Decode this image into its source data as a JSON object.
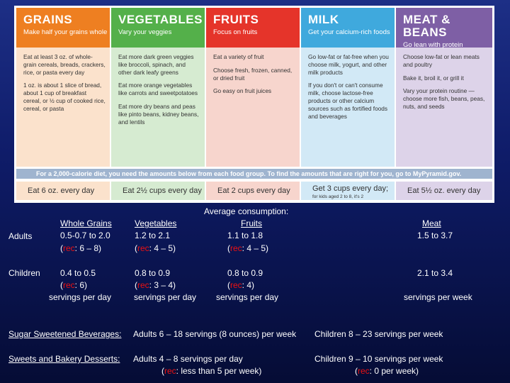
{
  "poster": {
    "columns": [
      {
        "key": "grains",
        "title": "GRAINS",
        "subtitle": "Make half your grains whole",
        "paragraphs": [
          "Eat at least 3 oz. of whole-grain cereals, breads, crackers, rice, or pasta every day",
          "1 oz. is about 1 slice of bread, about 1 cup of breakfast cereal, or ½ cup of cooked rice, cereal, or pasta"
        ],
        "daily": "Eat 6 oz. every day"
      },
      {
        "key": "vegetables",
        "title": "VEGETABLES",
        "subtitle": "Vary your veggies",
        "paragraphs": [
          "Eat more dark green veggies like broccoli, spinach, and other dark leafy greens",
          "Eat more orange vegetables like carrots and sweetpotatoes",
          "Eat more dry beans and peas like pinto beans, kidney beans, and lentils"
        ],
        "daily": "Eat 2½ cups every day"
      },
      {
        "key": "fruits",
        "title": "FRUITS",
        "subtitle": "Focus on fruits",
        "paragraphs": [
          "Eat a variety of fruit",
          "Choose fresh, frozen, canned, or dried fruit",
          "Go easy on fruit juices"
        ],
        "daily": "Eat 2 cups every day"
      },
      {
        "key": "milk",
        "title": "MILK",
        "subtitle": "Get your calcium-rich foods",
        "paragraphs": [
          "Go low-fat or fat-free when you choose milk, yogurt, and other milk products",
          "If you don't or can't consume milk, choose lactose-free products or other calcium sources such as fortified foods and beverages"
        ],
        "daily": "Get 3 cups every day;",
        "daily_note": "for kids aged 2 to 8, it's 2"
      },
      {
        "key": "meat",
        "title": "MEAT & BEANS",
        "subtitle": "Go lean with protein",
        "paragraphs": [
          "Choose low-fat or lean meats and poultry",
          "Bake it, broil it, or grill it",
          "Vary your protein routine — choose more fish, beans, peas, nuts, and seeds"
        ],
        "daily": "Eat 5½ oz. every day"
      }
    ],
    "band": "For a 2,000-calorie diet, you need the amounts below from each food group. To find the amounts that are right for you, go to MyPyramid.gov."
  },
  "colors": {
    "grains": "#ee7f21",
    "grains_light": "#fbe2cc",
    "vegetables": "#54b04a",
    "vegetables_light": "#d6ebd1",
    "fruits": "#e5342a",
    "fruits_light": "#f7d5cd",
    "milk": "#3fa9dd",
    "milk_light": "#d2e9f6",
    "meat": "#7e5fa5",
    "meat_light": "#ddd3e9",
    "rec": "#ee1111"
  },
  "consumption": {
    "title": "Average consumption:",
    "headers": {
      "whole_grains": "Whole Grains",
      "vegetables": "Vegetables",
      "fruits": "Fruits",
      "meat": "Meat"
    },
    "adults": {
      "label": "Adults",
      "whole_grains": {
        "value": "0.5-0.7 to 2.0",
        "rec": "6 – 8"
      },
      "vegetables": {
        "value": "1.2 to 2.1",
        "rec": "4 – 5"
      },
      "fruits": {
        "value": "1.1 to 1.8",
        "rec": "4 – 5"
      },
      "meat": {
        "value": "1.5 to 3.7"
      }
    },
    "children": {
      "label": "Children",
      "whole_grains": {
        "value": "0.4 to 0.5",
        "rec": "6"
      },
      "vegetables": {
        "value": "0.8 to 0.9",
        "rec": "3 – 4"
      },
      "fruits": {
        "value": "0.8 to 0.9",
        "rec": "4"
      },
      "meat": {
        "value": "2.1 to 3.4"
      }
    },
    "rec_prefix": "rec",
    "per_day": "servings per day",
    "per_week": "servings per week"
  },
  "sugar": {
    "label": "Sugar Sweetened Beverages:",
    "adults": "Adults 6 – 18 servings (8 ounces) per week",
    "children": "Children  8 – 23 servings per week"
  },
  "sweets": {
    "label": "Sweets and Bakery Desserts:",
    "adults": "Adults 4 – 8 servings per day",
    "adults_rec": "less than 5 per week",
    "children": "Children 9 – 10 servings per week",
    "children_rec": "0 per week"
  }
}
